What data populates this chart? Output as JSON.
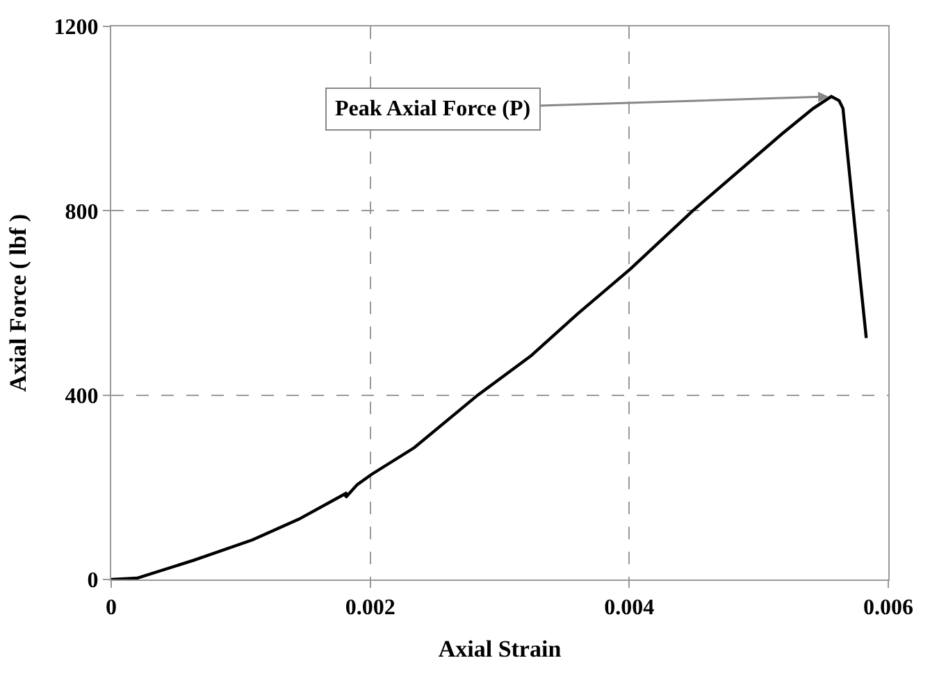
{
  "chart_data": {
    "type": "line",
    "xlabel": "Axial Strain",
    "ylabel": "Axial Force ( lbf )",
    "x": [
      0,
      0.0002,
      0.00064,
      0.00109,
      0.00145,
      0.00182,
      0.00181,
      0.0019,
      0.00201,
      0.00234,
      0.00283,
      0.00324,
      0.0036,
      0.00401,
      0.00449,
      0.00518,
      0.00542,
      0.00556,
      0.00562,
      0.00565,
      0.00578,
      0.00583
    ],
    "series": [
      {
        "color": "#000000",
        "values": [
          0,
          3,
          42,
          86,
          131,
          188,
          178,
          206,
          228,
          286,
          400,
          485,
          576,
          674,
          800,
          967,
          1022,
          1048,
          1039,
          1022,
          659,
          524
        ]
      }
    ],
    "xlim": [
      0,
      0.006
    ],
    "xticks": [
      0,
      0.002,
      0.004,
      0.006
    ],
    "ylim": [
      0,
      1200
    ],
    "yticks": [
      0,
      400,
      800,
      1200
    ],
    "grid": true,
    "marker": "none",
    "line_style": "solid",
    "annotations": [
      {
        "text": "Peak Axial Force (P)",
        "x": 0.00556,
        "y": 1048
      }
    ]
  }
}
